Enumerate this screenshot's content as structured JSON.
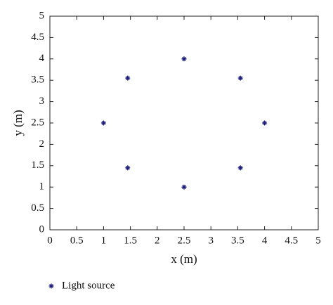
{
  "chart_data": {
    "type": "scatter",
    "x_label": "x (m)",
    "y_label": "y (m)",
    "series": [
      {
        "name": "Light source",
        "color": "#1a1a80",
        "x": [
          2.5,
          1.45,
          3.55,
          1,
          4,
          1.45,
          3.55,
          2.5
        ],
        "values": [
          4,
          3.55,
          3.55,
          2.5,
          2.5,
          1.45,
          1.45,
          1
        ]
      }
    ],
    "xlim": [
      0,
      5
    ],
    "ylim": [
      0,
      5
    ],
    "xticks": [
      0,
      0.5,
      1,
      1.5,
      2,
      2.5,
      3,
      3.5,
      4,
      4.5,
      5
    ],
    "yticks": [
      0,
      0.5,
      1,
      1.5,
      2,
      2.5,
      3,
      3.5,
      4,
      4.5,
      5
    ],
    "grid": false,
    "legend": "bottom-left"
  }
}
